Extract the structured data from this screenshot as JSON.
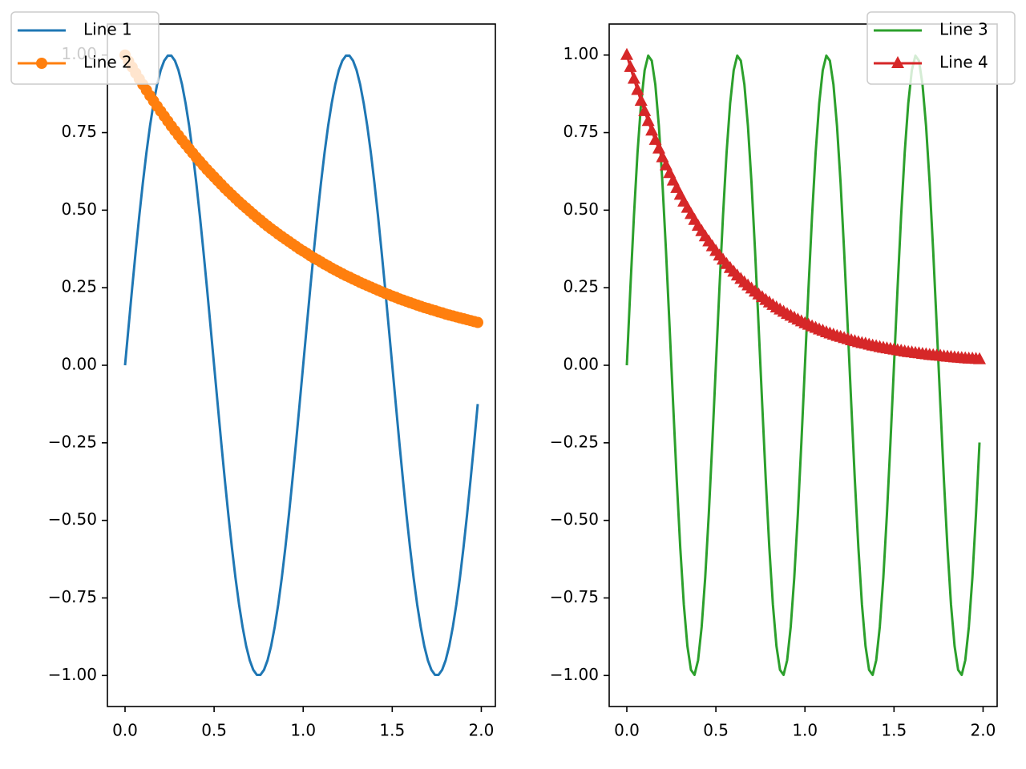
{
  "chart_data": [
    {
      "type": "line",
      "x": [
        0,
        0.02,
        0.04,
        0.06,
        0.08,
        0.1,
        0.12,
        0.14,
        0.16,
        0.18,
        0.2,
        0.22,
        0.24,
        0.26,
        0.28,
        0.3,
        0.32,
        0.34,
        0.36,
        0.38,
        0.4,
        0.42,
        0.44,
        0.46,
        0.48,
        0.5,
        0.52,
        0.54,
        0.56,
        0.58,
        0.6,
        0.62,
        0.64,
        0.66,
        0.68,
        0.7,
        0.72,
        0.74,
        0.76,
        0.78,
        0.8,
        0.82,
        0.84,
        0.86,
        0.88,
        0.9,
        0.92,
        0.94,
        0.96,
        0.98,
        1,
        1.02,
        1.04,
        1.06,
        1.08,
        1.1,
        1.12,
        1.14,
        1.16,
        1.18,
        1.2,
        1.22,
        1.24,
        1.26,
        1.28,
        1.3,
        1.32,
        1.34,
        1.36,
        1.38,
        1.4,
        1.42,
        1.44,
        1.46,
        1.48,
        1.5,
        1.52,
        1.54,
        1.56,
        1.58,
        1.6,
        1.62,
        1.64,
        1.66,
        1.68,
        1.7,
        1.72,
        1.74,
        1.76,
        1.78,
        1.8,
        1.82,
        1.84,
        1.86,
        1.88,
        1.9,
        1.92,
        1.94,
        1.96,
        1.98
      ],
      "series": [
        {
          "name": "Line 1",
          "color": "#1f77b4",
          "marker": null,
          "values": [
            0,
            0.125,
            0.249,
            0.368,
            0.482,
            0.588,
            0.685,
            0.771,
            0.844,
            0.905,
            0.951,
            0.982,
            0.998,
            0.998,
            0.982,
            0.951,
            0.905,
            0.844,
            0.771,
            0.685,
            0.588,
            0.482,
            0.368,
            0.249,
            0.125,
            0,
            -0.125,
            -0.249,
            -0.368,
            -0.482,
            -0.588,
            -0.685,
            -0.771,
            -0.844,
            -0.905,
            -0.951,
            -0.982,
            -0.998,
            -0.998,
            -0.982,
            -0.951,
            -0.905,
            -0.844,
            -0.771,
            -0.685,
            -0.588,
            -0.482,
            -0.368,
            -0.249,
            -0.125,
            0,
            0.125,
            0.249,
            0.368,
            0.482,
            0.588,
            0.685,
            0.771,
            0.844,
            0.905,
            0.951,
            0.982,
            0.998,
            0.998,
            0.982,
            0.951,
            0.905,
            0.844,
            0.771,
            0.685,
            0.588,
            0.482,
            0.368,
            0.249,
            0.125,
            0,
            -0.125,
            -0.249,
            -0.368,
            -0.482,
            -0.588,
            -0.685,
            -0.771,
            -0.844,
            -0.905,
            -0.951,
            -0.982,
            -0.998,
            -0.998,
            -0.982,
            -0.951,
            -0.905,
            -0.844,
            -0.771,
            -0.685,
            -0.588,
            -0.482,
            -0.368,
            -0.249,
            -0.125
          ]
        },
        {
          "name": "Line 2",
          "color": "#ff7f0e",
          "marker": "circle",
          "values": [
            1,
            0.98,
            0.961,
            0.942,
            0.923,
            0.905,
            0.887,
            0.869,
            0.852,
            0.835,
            0.819,
            0.803,
            0.787,
            0.771,
            0.756,
            0.741,
            0.726,
            0.712,
            0.698,
            0.684,
            0.67,
            0.657,
            0.644,
            0.631,
            0.619,
            0.607,
            0.595,
            0.583,
            0.571,
            0.56,
            0.549,
            0.538,
            0.527,
            0.517,
            0.507,
            0.497,
            0.487,
            0.477,
            0.468,
            0.458,
            0.449,
            0.44,
            0.432,
            0.423,
            0.415,
            0.407,
            0.399,
            0.391,
            0.383,
            0.375,
            0.368,
            0.361,
            0.353,
            0.346,
            0.34,
            0.333,
            0.326,
            0.32,
            0.313,
            0.307,
            0.301,
            0.295,
            0.289,
            0.284,
            0.278,
            0.273,
            0.267,
            0.262,
            0.257,
            0.252,
            0.247,
            0.242,
            0.237,
            0.232,
            0.228,
            0.223,
            0.219,
            0.214,
            0.21,
            0.206,
            0.202,
            0.198,
            0.194,
            0.19,
            0.186,
            0.183,
            0.179,
            0.176,
            0.172,
            0.169,
            0.165,
            0.162,
            0.159,
            0.156,
            0.153,
            0.15,
            0.147,
            0.144,
            0.141,
            0.138
          ]
        }
      ],
      "xlim": [
        -0.099,
        2.079
      ],
      "ylim": [
        -1.1,
        1.1
      ],
      "xticks": [
        {
          "value": 0,
          "label": "0.0"
        },
        {
          "value": 0.5,
          "label": "0.5"
        },
        {
          "value": 1,
          "label": "1.0"
        },
        {
          "value": 1.5,
          "label": "1.5"
        },
        {
          "value": 2,
          "label": "2.0"
        }
      ],
      "yticks": [
        {
          "value": -1,
          "label": "−1.00"
        },
        {
          "value": -0.75,
          "label": "−0.75"
        },
        {
          "value": -0.5,
          "label": "−0.50"
        },
        {
          "value": -0.25,
          "label": "−0.25"
        },
        {
          "value": 0,
          "label": "0.00"
        },
        {
          "value": 0.25,
          "label": "0.25"
        },
        {
          "value": 0.5,
          "label": "0.50"
        },
        {
          "value": 0.75,
          "label": "0.75"
        },
        {
          "value": 1,
          "label": "1.00"
        }
      ],
      "legend": "upper left"
    },
    {
      "type": "line",
      "x": [
        0,
        0.02,
        0.04,
        0.06,
        0.08,
        0.1,
        0.12,
        0.14,
        0.16,
        0.18,
        0.2,
        0.22,
        0.24,
        0.26,
        0.28,
        0.3,
        0.32,
        0.34,
        0.36,
        0.38,
        0.4,
        0.42,
        0.44,
        0.46,
        0.48,
        0.5,
        0.52,
        0.54,
        0.56,
        0.58,
        0.6,
        0.62,
        0.64,
        0.66,
        0.68,
        0.7,
        0.72,
        0.74,
        0.76,
        0.78,
        0.8,
        0.82,
        0.84,
        0.86,
        0.88,
        0.9,
        0.92,
        0.94,
        0.96,
        0.98,
        1,
        1.02,
        1.04,
        1.06,
        1.08,
        1.1,
        1.12,
        1.14,
        1.16,
        1.18,
        1.2,
        1.22,
        1.24,
        1.26,
        1.28,
        1.3,
        1.32,
        1.34,
        1.36,
        1.38,
        1.4,
        1.42,
        1.44,
        1.46,
        1.48,
        1.5,
        1.52,
        1.54,
        1.56,
        1.58,
        1.6,
        1.62,
        1.64,
        1.66,
        1.68,
        1.7,
        1.72,
        1.74,
        1.76,
        1.78,
        1.8,
        1.82,
        1.84,
        1.86,
        1.88,
        1.9,
        1.92,
        1.94,
        1.96,
        1.98
      ],
      "series": [
        {
          "name": "Line 3",
          "color": "#2ca02c",
          "marker": null,
          "values": [
            0,
            0.249,
            0.482,
            0.685,
            0.844,
            0.951,
            0.998,
            0.982,
            0.905,
            0.771,
            0.588,
            0.368,
            0.125,
            -0.125,
            -0.368,
            -0.588,
            -0.771,
            -0.905,
            -0.982,
            -0.998,
            -0.951,
            -0.844,
            -0.685,
            -0.482,
            -0.249,
            0,
            0.249,
            0.482,
            0.685,
            0.844,
            0.951,
            0.998,
            0.982,
            0.905,
            0.771,
            0.588,
            0.368,
            0.125,
            -0.125,
            -0.368,
            -0.588,
            -0.771,
            -0.905,
            -0.982,
            -0.998,
            -0.951,
            -0.844,
            -0.685,
            -0.482,
            -0.249,
            0,
            0.249,
            0.482,
            0.685,
            0.844,
            0.951,
            0.998,
            0.982,
            0.905,
            0.771,
            0.588,
            0.368,
            0.125,
            -0.125,
            -0.368,
            -0.588,
            -0.771,
            -0.905,
            -0.982,
            -0.998,
            -0.951,
            -0.844,
            -0.685,
            -0.482,
            -0.249,
            0,
            0.249,
            0.482,
            0.685,
            0.844,
            0.951,
            0.998,
            0.982,
            0.905,
            0.771,
            0.588,
            0.368,
            0.125,
            -0.125,
            -0.368,
            -0.588,
            -0.771,
            -0.905,
            -0.982,
            -0.998,
            -0.951,
            -0.844,
            -0.685,
            -0.482,
            -0.249
          ]
        },
        {
          "name": "Line 4",
          "color": "#d62728",
          "marker": "triangle",
          "values": [
            1,
            0.961,
            0.923,
            0.887,
            0.852,
            0.819,
            0.787,
            0.756,
            0.726,
            0.698,
            0.67,
            0.644,
            0.619,
            0.595,
            0.571,
            0.549,
            0.527,
            0.507,
            0.487,
            0.468,
            0.449,
            0.432,
            0.415,
            0.399,
            0.383,
            0.368,
            0.353,
            0.34,
            0.326,
            0.313,
            0.301,
            0.289,
            0.278,
            0.267,
            0.257,
            0.247,
            0.237,
            0.228,
            0.219,
            0.21,
            0.202,
            0.194,
            0.186,
            0.179,
            0.172,
            0.165,
            0.159,
            0.153,
            0.147,
            0.141,
            0.135,
            0.13,
            0.125,
            0.12,
            0.115,
            0.111,
            0.106,
            0.102,
            0.098,
            0.094,
            0.091,
            0.087,
            0.084,
            0.08,
            0.077,
            0.074,
            0.071,
            0.069,
            0.066,
            0.063,
            0.061,
            0.058,
            0.056,
            0.054,
            0.052,
            0.05,
            0.048,
            0.046,
            0.044,
            0.042,
            0.041,
            0.039,
            0.038,
            0.036,
            0.035,
            0.033,
            0.032,
            0.031,
            0.03,
            0.028,
            0.027,
            0.026,
            0.025,
            0.024,
            0.023,
            0.022,
            0.021,
            0.021,
            0.02,
            0.019
          ]
        }
      ],
      "xlim": [
        -0.099,
        2.079
      ],
      "ylim": [
        -1.1,
        1.1
      ],
      "xticks": [
        {
          "value": 0,
          "label": "0.0"
        },
        {
          "value": 0.5,
          "label": "0.5"
        },
        {
          "value": 1,
          "label": "1.0"
        },
        {
          "value": 1.5,
          "label": "1.5"
        },
        {
          "value": 2,
          "label": "2.0"
        }
      ],
      "yticks": [
        {
          "value": -1,
          "label": "−1.00"
        },
        {
          "value": -0.75,
          "label": "−0.75"
        },
        {
          "value": -0.5,
          "label": "−0.50"
        },
        {
          "value": -0.25,
          "label": "−0.25"
        },
        {
          "value": 0,
          "label": "0.00"
        },
        {
          "value": 0.25,
          "label": "0.25"
        },
        {
          "value": 0.5,
          "label": "0.50"
        },
        {
          "value": 0.75,
          "label": "0.75"
        },
        {
          "value": 1,
          "label": "1.00"
        }
      ],
      "legend": "upper right"
    }
  ]
}
